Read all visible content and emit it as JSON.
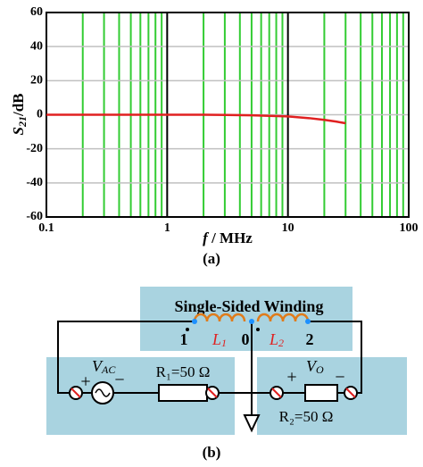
{
  "chart_data": {
    "type": "line",
    "y_label": {
      "base": "S",
      "sub": "21",
      "suffix": "/dB"
    },
    "x_label": {
      "italic": "f",
      "rest": " / MHz"
    },
    "caption": "(a)",
    "x": [
      0.1,
      0.2,
      0.5,
      1,
      2,
      5,
      10,
      15,
      20,
      25,
      30
    ],
    "series": [
      {
        "color": "#e02020",
        "values": [
          0,
          0,
          0,
          0,
          0,
          -0.3,
          -1,
          -2,
          -3,
          -4,
          -5
        ]
      }
    ],
    "xscale": "log",
    "xlim": [
      0.1,
      100
    ],
    "xticks": [
      0.1,
      1,
      10,
      100
    ],
    "xgrid_minor": [
      0.2,
      0.3,
      0.4,
      0.5,
      0.6,
      0.7,
      0.8,
      0.9,
      2,
      3,
      4,
      5,
      6,
      7,
      8,
      9,
      20,
      30,
      40,
      50,
      60,
      70,
      80,
      90
    ],
    "ylim": [
      -60,
      60
    ],
    "yticks": [
      -60,
      -40,
      -20,
      0,
      20,
      40,
      60
    ],
    "grid": true,
    "major_grid_color": "#000000",
    "minor_grid_color": "#33cc33",
    "y_grid_color": "#c0c0c0"
  },
  "diagram": {
    "title": "Single-Sided Winding",
    "caption": "(b)",
    "tap_1": "1",
    "tap_0": "0",
    "tap_2": "2",
    "inductor_1": {
      "base": "L",
      "sub": "1"
    },
    "inductor_2": {
      "base": "L",
      "sub": "2"
    },
    "source": {
      "base": "V",
      "sub": "AC"
    },
    "output": {
      "base": "V",
      "sub": "O"
    },
    "resistor_1": "R₁=50 Ω",
    "resistor_2": "R₂=50 Ω",
    "plus": "+",
    "minus": "−"
  }
}
